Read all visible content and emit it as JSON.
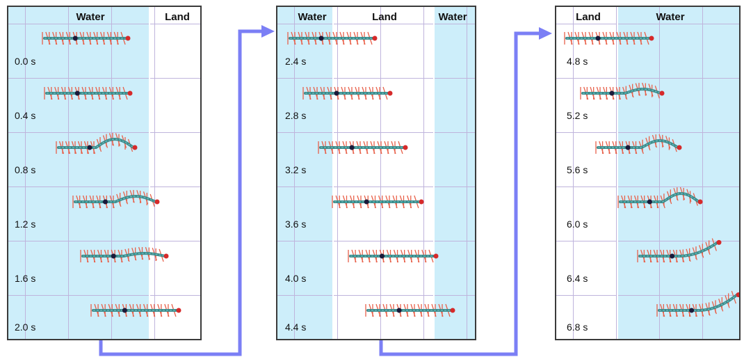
{
  "panels": [
    {
      "zones": [
        {
          "label": "Water",
          "type": "water"
        },
        {
          "label": "Land",
          "type": "land"
        }
      ],
      "times": [
        "0.0 s",
        "0.4 s",
        "0.8 s",
        "1.2 s",
        "1.6 s",
        "2.0 s"
      ]
    },
    {
      "zones": [
        {
          "label": "Water",
          "type": "water"
        },
        {
          "label": "Land",
          "type": "land"
        },
        {
          "label": "Water",
          "type": "water"
        }
      ],
      "times": [
        "2.4 s",
        "2.8 s",
        "3.2 s",
        "3.6 s",
        "4.0 s",
        "4.4 s"
      ]
    },
    {
      "zones": [
        {
          "label": "Land",
          "type": "land"
        },
        {
          "label": "Water",
          "type": "water"
        }
      ],
      "times": [
        "4.8 s",
        "5.2 s",
        "5.6 s",
        "6.0 s",
        "6.4 s",
        "6.8 s"
      ]
    }
  ],
  "colors": {
    "water": "#cdeefa",
    "grid": "#bfb4dc",
    "body": "#3a8a8a",
    "legs": "#e8614a",
    "head": "#d62a2a",
    "center_of_mass": "#1a1a3a",
    "arrow": "#7b7ff5"
  }
}
